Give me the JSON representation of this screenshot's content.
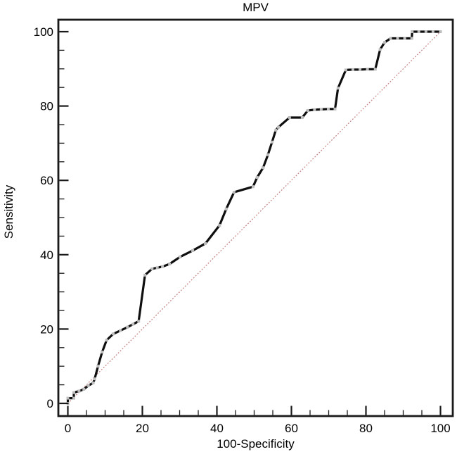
{
  "chart_data": {
    "type": "line",
    "subtype": "roc-curve",
    "title": "MPV",
    "xlabel": "100-Specificity",
    "ylabel": "Sensitivity",
    "xlim": [
      0,
      100
    ],
    "ylim": [
      0,
      100
    ],
    "x_major_ticks": [
      0,
      20,
      40,
      60,
      80,
      100
    ],
    "y_major_ticks": [
      0,
      20,
      40,
      60,
      80,
      100
    ],
    "minor_tick_step": 5,
    "grid": false,
    "legend": false,
    "frame_color": "#1a1a1a",
    "series": [
      {
        "name": "MPV ROC curve",
        "color": "#0f0f0f",
        "line_width": 3.2,
        "marker": "square",
        "marker_color": "#bdbdbd",
        "points": [
          [
            0,
            0
          ],
          [
            0,
            1.4
          ],
          [
            1.6,
            1.4
          ],
          [
            1.6,
            2.9
          ],
          [
            3,
            3.3
          ],
          [
            4.3,
            3.8
          ],
          [
            5.5,
            4.8
          ],
          [
            6.8,
            5.5
          ],
          [
            7.2,
            6.6
          ],
          [
            8.1,
            10
          ],
          [
            9.2,
            13.8
          ],
          [
            10.4,
            17
          ],
          [
            12.2,
            18.7
          ],
          [
            14.1,
            19.6
          ],
          [
            16,
            20.5
          ],
          [
            17.5,
            21.3
          ],
          [
            19,
            22.1
          ],
          [
            20.7,
            34.5
          ],
          [
            22.6,
            36.2
          ],
          [
            24,
            36.5
          ],
          [
            25.4,
            36.8
          ],
          [
            27.3,
            37.5
          ],
          [
            30.1,
            39.4
          ],
          [
            33.5,
            41.1
          ],
          [
            36.9,
            43
          ],
          [
            40.7,
            47.9
          ],
          [
            42.5,
            52.3
          ],
          [
            44.6,
            56.8
          ],
          [
            49.7,
            58.3
          ],
          [
            50.8,
            60.8
          ],
          [
            52.4,
            63.4
          ],
          [
            53.7,
            66.9
          ],
          [
            54.8,
            70.3
          ],
          [
            55.8,
            73.5
          ],
          [
            56.5,
            74.3
          ],
          [
            59.5,
            76.9
          ],
          [
            62.9,
            76.9
          ],
          [
            64.4,
            78.8
          ],
          [
            66.2,
            79
          ],
          [
            68,
            79.1
          ],
          [
            69.9,
            79.2
          ],
          [
            71.7,
            79.2
          ],
          [
            72.5,
            84.8
          ],
          [
            74.6,
            89.7
          ],
          [
            76.5,
            89.8
          ],
          [
            78.4,
            89.8
          ],
          [
            80.4,
            89.9
          ],
          [
            82.5,
            89.9
          ],
          [
            83.8,
            95.2
          ],
          [
            85,
            97.1
          ],
          [
            86.6,
            98.2
          ],
          [
            88.5,
            98.2
          ],
          [
            90.4,
            98.2
          ],
          [
            92.3,
            98.2
          ],
          [
            92.4,
            100
          ],
          [
            94.2,
            100
          ],
          [
            96.1,
            100
          ],
          [
            98,
            100
          ],
          [
            100,
            100
          ]
        ]
      }
    ],
    "reference_line": {
      "name": "chance diagonal",
      "color": "#c58383",
      "style": "dotted",
      "points": [
        [
          0,
          0
        ],
        [
          100,
          100
        ]
      ]
    }
  }
}
